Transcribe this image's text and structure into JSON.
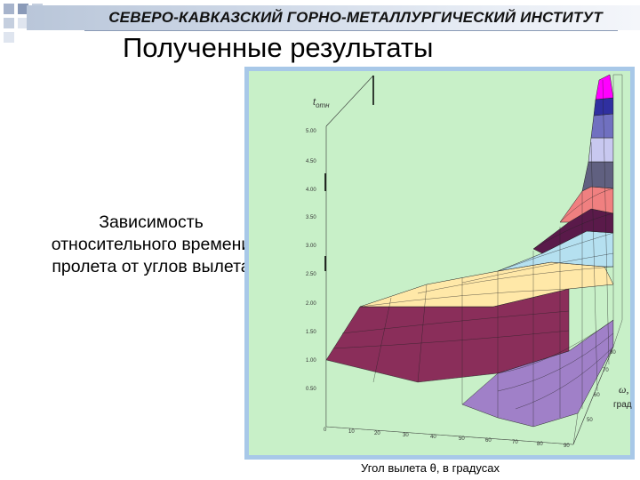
{
  "header": {
    "institute": "СЕВЕРО-КАВКАЗСКИЙ ГОРНО-МЕТАЛЛУРГИЧЕСКИЙ ИНСТИТУТ"
  },
  "slide": {
    "title": "Полученные результаты",
    "caption_lines": [
      "Зависимость",
      "относительного времени",
      "пролета от углов вылета"
    ]
  },
  "plot": {
    "z_label": "t",
    "z_label_sub": "отн",
    "z_ticks": [
      "5.00",
      "4.50",
      "4.00",
      "3.50",
      "3.00",
      "2.50",
      "2.00",
      "1.50",
      "1.00",
      "0.50"
    ],
    "x_ticks": [
      "0",
      "10",
      "20",
      "30",
      "40",
      "50",
      "60",
      "70",
      "80",
      "90"
    ],
    "w_ticks": [
      "50",
      "60",
      "70",
      "80"
    ],
    "w_label": "ω,",
    "w_unit": "град",
    "x_caption": "Угол вылета θ, в градусах",
    "colors": {
      "background": "#c8f0c8",
      "frame": "#a8c8e8",
      "bands": [
        "#b5e0f0",
        "#a070b0",
        "#5a1a4a",
        "#ffe8a8",
        "#9050a8",
        "#f08080",
        "#606080",
        "#c8c8f0",
        "#7070c0",
        "#3030a0",
        "#ff00ff",
        "#8a2e5a",
        "#a080c8",
        "#f0f0f0"
      ]
    }
  }
}
